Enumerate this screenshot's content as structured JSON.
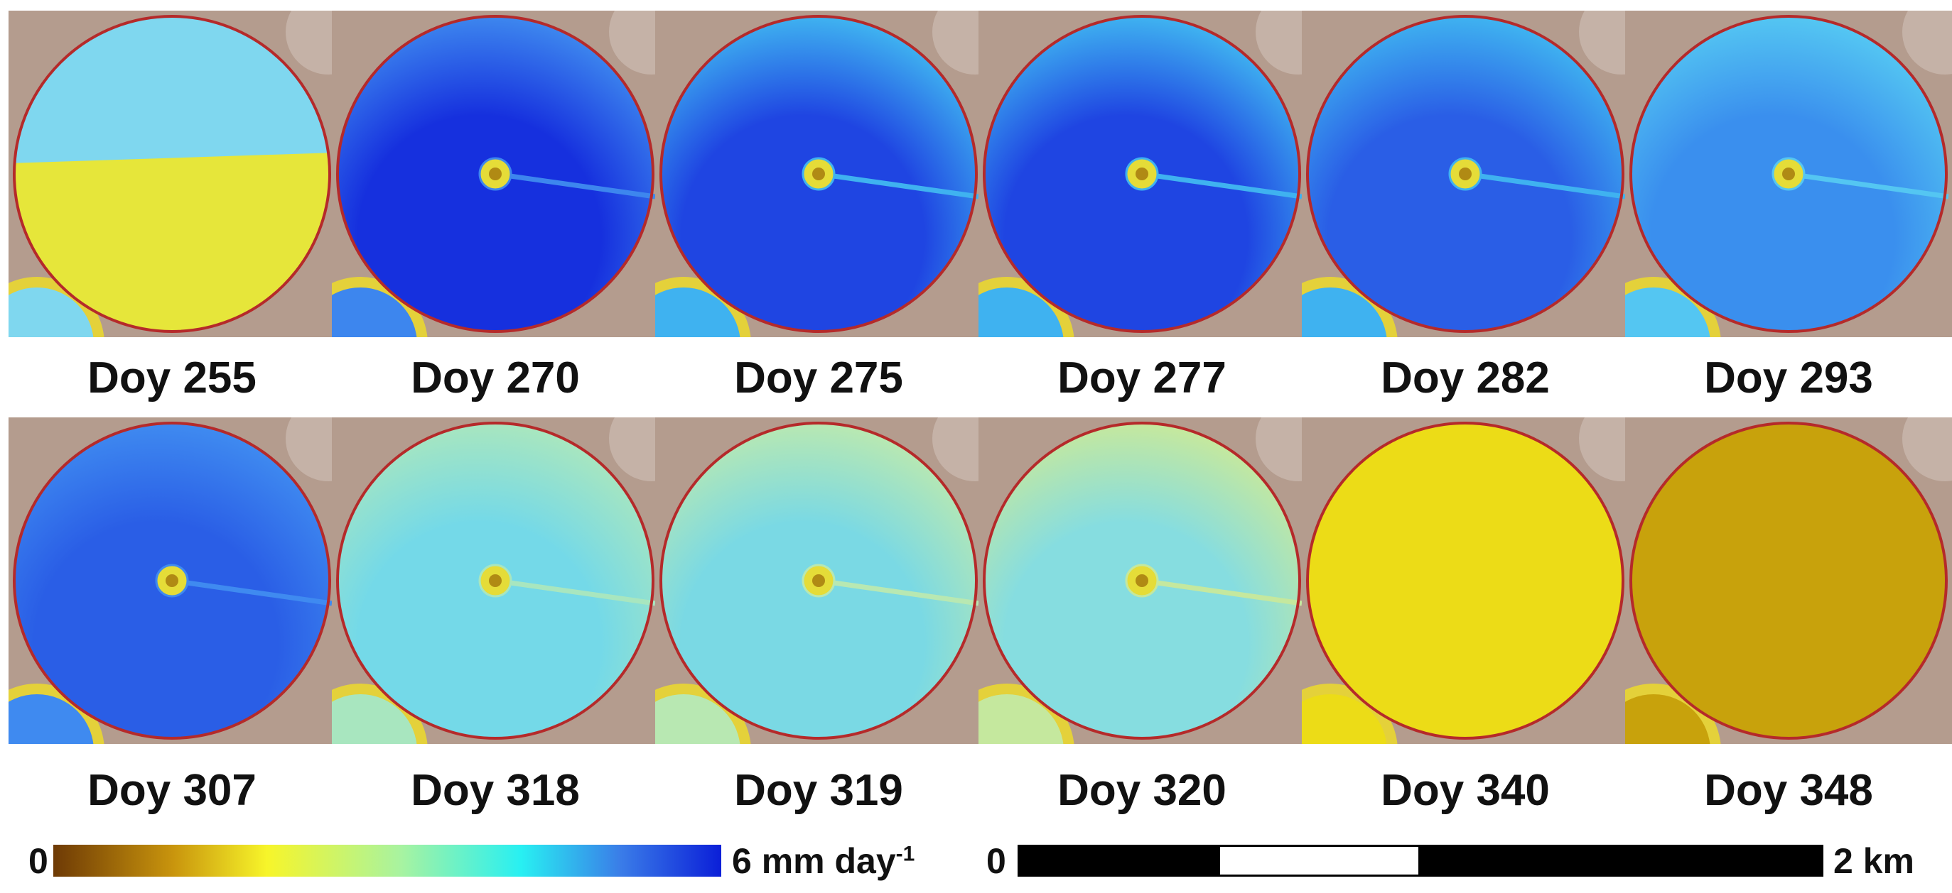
{
  "panels": [
    {
      "label": "Doy 255",
      "field": "#e6e63a",
      "alt": "#7fd7ef",
      "pattern": "split"
    },
    {
      "label": "Doy 270",
      "field": "#1630de",
      "alt": "#3d86ee",
      "pattern": "dark"
    },
    {
      "label": "Doy 275",
      "field": "#1f45e2",
      "alt": "#3fb2f0",
      "pattern": "dark"
    },
    {
      "label": "Doy 277",
      "field": "#1f45e2",
      "alt": "#3fb2f0",
      "pattern": "dark"
    },
    {
      "label": "Doy 282",
      "field": "#2a5ee6",
      "alt": "#3fb2f0",
      "pattern": "mid"
    },
    {
      "label": "Doy 293",
      "field": "#3a8fee",
      "alt": "#54c6f2",
      "pattern": "mid"
    },
    {
      "label": "Doy 307",
      "field": "#2a5ee6",
      "alt": "#3f8af0",
      "pattern": "mid"
    },
    {
      "label": "Doy 318",
      "field": "#74d9e8",
      "alt": "#a8e6bf",
      "pattern": "light"
    },
    {
      "label": "Doy 319",
      "field": "#7ad9e4",
      "alt": "#b8e8b2",
      "pattern": "light"
    },
    {
      "label": "Doy 320",
      "field": "#86dde0",
      "alt": "#c5e89e",
      "pattern": "light"
    },
    {
      "label": "Doy 340",
      "field": "#ecdc17",
      "alt": "#ecdc17",
      "pattern": "flat"
    },
    {
      "label": "Doy 348",
      "field": "#c8a20c",
      "alt": "#c8a20c",
      "pattern": "flat"
    }
  ],
  "colorbar": {
    "min_label": "0",
    "max_label": "6 mm day",
    "max_sup": "-1"
  },
  "scalebar": {
    "start_label": "0",
    "end_label": "2 km"
  }
}
